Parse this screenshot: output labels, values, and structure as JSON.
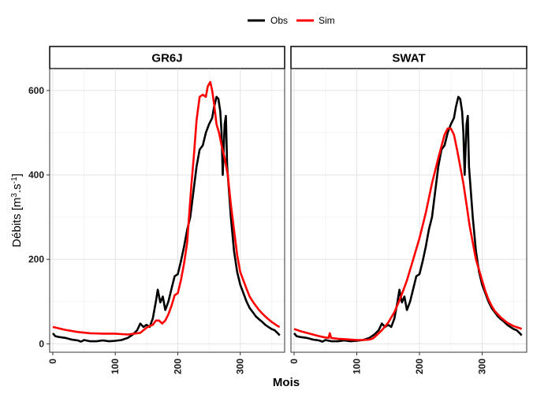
{
  "chart_data": {
    "type": "line",
    "title": "",
    "xlabel": "Mois",
    "ylabel": "Débits [m3.s-1]",
    "xlim": [
      -5,
      371
    ],
    "ylim": [
      -20,
      652
    ],
    "xticks": [
      0,
      100,
      200,
      300
    ],
    "yticks": [
      0,
      200,
      400,
      600
    ],
    "grid": true,
    "legend_position": "top",
    "legend": [
      {
        "name": "Obs",
        "color": "#000000"
      },
      {
        "name": "Sim",
        "color": "#ff0000"
      }
    ],
    "panels": [
      {
        "strip": "GR6J",
        "series": [
          {
            "name": "Obs",
            "color": "#000000",
            "points": [
              [
                0,
                25
              ],
              [
                4,
                18
              ],
              [
                10,
                16
              ],
              [
                20,
                14
              ],
              [
                30,
                10
              ],
              [
                40,
                8
              ],
              [
                45,
                5
              ],
              [
                50,
                9
              ],
              [
                60,
                6
              ],
              [
                70,
                6
              ],
              [
                80,
                8
              ],
              [
                90,
                6
              ],
              [
                100,
                7
              ],
              [
                110,
                9
              ],
              [
                120,
                14
              ],
              [
                128,
                22
              ],
              [
                135,
                32
              ],
              [
                140,
                48
              ],
              [
                145,
                40
              ],
              [
                150,
                45
              ],
              [
                155,
                40
              ],
              [
                160,
                60
              ],
              [
                165,
                100
              ],
              [
                168,
                128
              ],
              [
                172,
                98
              ],
              [
                176,
                112
              ],
              [
                180,
                80
              ],
              [
                185,
                100
              ],
              [
                190,
                130
              ],
              [
                195,
                160
              ],
              [
                200,
                165
              ],
              [
                205,
                195
              ],
              [
                210,
                230
              ],
              [
                215,
                270
              ],
              [
                220,
                300
              ],
              [
                225,
                360
              ],
              [
                230,
                420
              ],
              [
                235,
                460
              ],
              [
                240,
                470
              ],
              [
                245,
                500
              ],
              [
                250,
                520
              ],
              [
                255,
                535
              ],
              [
                258,
                560
              ],
              [
                262,
                585
              ],
              [
                265,
                580
              ],
              [
                268,
                550
              ],
              [
                270,
                500
              ],
              [
                272,
                400
              ],
              [
                275,
                520
              ],
              [
                277,
                540
              ],
              [
                279,
                420
              ],
              [
                282,
                360
              ],
              [
                285,
                300
              ],
              [
                290,
                220
              ],
              [
                295,
                170
              ],
              [
                300,
                140
              ],
              [
                305,
                120
              ],
              [
                310,
                100
              ],
              [
                315,
                85
              ],
              [
                320,
                75
              ],
              [
                325,
                65
              ],
              [
                330,
                58
              ],
              [
                335,
                52
              ],
              [
                340,
                45
              ],
              [
                345,
                40
              ],
              [
                350,
                35
              ],
              [
                355,
                32
              ],
              [
                360,
                25
              ],
              [
                363,
                20
              ]
            ]
          },
          {
            "name": "Sim",
            "color": "#ff0000",
            "points": [
              [
                0,
                40
              ],
              [
                20,
                33
              ],
              [
                40,
                28
              ],
              [
                60,
                25
              ],
              [
                80,
                24
              ],
              [
                100,
                24
              ],
              [
                110,
                23
              ],
              [
                120,
                22
              ],
              [
                130,
                24
              ],
              [
                140,
                26
              ],
              [
                145,
                32
              ],
              [
                150,
                38
              ],
              [
                155,
                42
              ],
              [
                160,
                45
              ],
              [
                165,
                55
              ],
              [
                170,
                55
              ],
              [
                175,
                48
              ],
              [
                180,
                55
              ],
              [
                185,
                70
              ],
              [
                190,
                90
              ],
              [
                195,
                115
              ],
              [
                200,
                120
              ],
              [
                205,
                150
              ],
              [
                210,
                190
              ],
              [
                215,
                240
              ],
              [
                218,
                300
              ],
              [
                222,
                380
              ],
              [
                226,
                450
              ],
              [
                230,
                530
              ],
              [
                235,
                585
              ],
              [
                240,
                590
              ],
              [
                245,
                585
              ],
              [
                248,
                610
              ],
              [
                252,
                620
              ],
              [
                255,
                600
              ],
              [
                258,
                570
              ],
              [
                262,
                520
              ],
              [
                266,
                500
              ],
              [
                270,
                470
              ],
              [
                275,
                440
              ],
              [
                280,
                400
              ],
              [
                285,
                330
              ],
              [
                290,
                270
              ],
              [
                295,
                210
              ],
              [
                300,
                170
              ],
              [
                305,
                150
              ],
              [
                310,
                130
              ],
              [
                315,
                112
              ],
              [
                320,
                100
              ],
              [
                325,
                90
              ],
              [
                330,
                80
              ],
              [
                335,
                72
              ],
              [
                340,
                65
              ],
              [
                345,
                58
              ],
              [
                350,
                52
              ],
              [
                355,
                47
              ],
              [
                360,
                42
              ],
              [
                363,
                40
              ]
            ]
          }
        ]
      },
      {
        "strip": "SWAT",
        "series": [
          {
            "name": "Obs",
            "color": "#000000",
            "points": [
              [
                0,
                25
              ],
              [
                4,
                18
              ],
              [
                10,
                16
              ],
              [
                20,
                14
              ],
              [
                30,
                10
              ],
              [
                40,
                8
              ],
              [
                45,
                5
              ],
              [
                50,
                9
              ],
              [
                60,
                6
              ],
              [
                70,
                6
              ],
              [
                80,
                8
              ],
              [
                90,
                6
              ],
              [
                100,
                7
              ],
              [
                110,
                9
              ],
              [
                120,
                14
              ],
              [
                128,
                22
              ],
              [
                135,
                32
              ],
              [
                140,
                48
              ],
              [
                145,
                40
              ],
              [
                150,
                45
              ],
              [
                155,
                40
              ],
              [
                160,
                60
              ],
              [
                165,
                100
              ],
              [
                168,
                128
              ],
              [
                172,
                98
              ],
              [
                176,
                112
              ],
              [
                180,
                80
              ],
              [
                185,
                100
              ],
              [
                190,
                130
              ],
              [
                195,
                160
              ],
              [
                200,
                165
              ],
              [
                205,
                195
              ],
              [
                210,
                230
              ],
              [
                215,
                270
              ],
              [
                220,
                300
              ],
              [
                225,
                360
              ],
              [
                230,
                420
              ],
              [
                235,
                460
              ],
              [
                240,
                470
              ],
              [
                245,
                500
              ],
              [
                250,
                520
              ],
              [
                255,
                535
              ],
              [
                258,
                560
              ],
              [
                262,
                585
              ],
              [
                265,
                580
              ],
              [
                268,
                550
              ],
              [
                270,
                500
              ],
              [
                272,
                400
              ],
              [
                275,
                520
              ],
              [
                277,
                540
              ],
              [
                279,
                420
              ],
              [
                282,
                360
              ],
              [
                285,
                300
              ],
              [
                290,
                220
              ],
              [
                295,
                170
              ],
              [
                300,
                140
              ],
              [
                305,
                120
              ],
              [
                310,
                100
              ],
              [
                315,
                85
              ],
              [
                320,
                75
              ],
              [
                325,
                65
              ],
              [
                330,
                58
              ],
              [
                335,
                52
              ],
              [
                340,
                45
              ],
              [
                345,
                40
              ],
              [
                350,
                35
              ],
              [
                355,
                32
              ],
              [
                360,
                25
              ],
              [
                363,
                20
              ]
            ]
          },
          {
            "name": "Sim",
            "color": "#ff0000",
            "points": [
              [
                0,
                35
              ],
              [
                10,
                30
              ],
              [
                20,
                26
              ],
              [
                30,
                22
              ],
              [
                40,
                18
              ],
              [
                50,
                15
              ],
              [
                55,
                14
              ],
              [
                57,
                25
              ],
              [
                59,
                14
              ],
              [
                70,
                12
              ],
              [
                80,
                11
              ],
              [
                90,
                10
              ],
              [
                100,
                9
              ],
              [
                110,
                9
              ],
              [
                120,
                10
              ],
              [
                125,
                12
              ],
              [
                130,
                18
              ],
              [
                135,
                25
              ],
              [
                140,
                32
              ],
              [
                150,
                50
              ],
              [
                160,
                75
              ],
              [
                170,
                110
              ],
              [
                180,
                150
              ],
              [
                190,
                200
              ],
              [
                200,
                250
              ],
              [
                210,
                310
              ],
              [
                220,
                380
              ],
              [
                230,
                440
              ],
              [
                240,
                495
              ],
              [
                245,
                510
              ],
              [
                250,
                510
              ],
              [
                255,
                495
              ],
              [
                260,
                460
              ],
              [
                265,
                420
              ],
              [
                270,
                380
              ],
              [
                275,
                330
              ],
              [
                280,
                280
              ],
              [
                285,
                240
              ],
              [
                290,
                200
              ],
              [
                295,
                175
              ],
              [
                300,
                150
              ],
              [
                305,
                125
              ],
              [
                310,
                105
              ],
              [
                315,
                90
              ],
              [
                320,
                78
              ],
              [
                330,
                62
              ],
              [
                340,
                50
              ],
              [
                350,
                42
              ],
              [
                360,
                37
              ],
              [
                363,
                35
              ]
            ]
          }
        ]
      }
    ]
  }
}
